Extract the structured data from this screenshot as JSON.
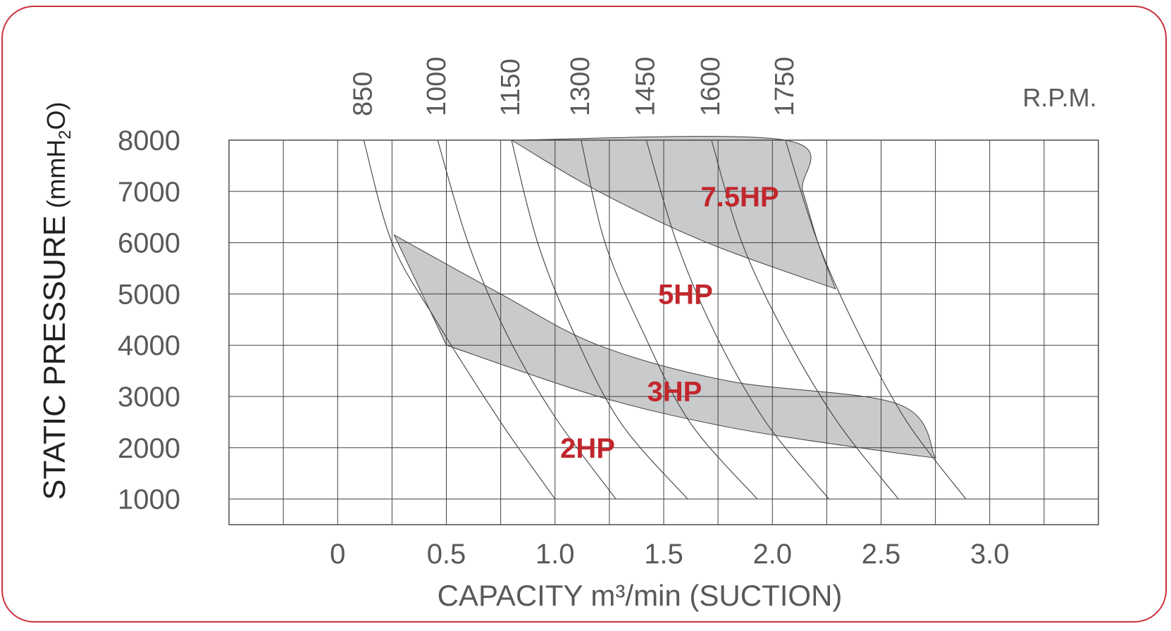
{
  "chart_data": {
    "type": "line",
    "ylabel_main": "STATIC PRESSURE",
    "ylabel_unit_pre": "(mmH",
    "ylabel_unit_sub": "2",
    "ylabel_unit_post": "O)",
    "xlabel": "CAPACITY m³/min (SUCTION)",
    "rpm_label": "R.P.M.",
    "xlim": [
      -0.5,
      3.5
    ],
    "ylim": [
      500,
      8000
    ],
    "x_ticks": [
      "0",
      "0.5",
      "1.0",
      "1.5",
      "2.0",
      "2.5",
      "3.0"
    ],
    "y_ticks": [
      "8000",
      "7000",
      "6000",
      "5000",
      "4000",
      "3000",
      "2000",
      "1000"
    ],
    "grid": true,
    "rpm_curves": [
      {
        "rpm": "850",
        "points": [
          [
            0.12,
            8000
          ],
          [
            0.25,
            6000
          ],
          [
            0.45,
            4500
          ],
          [
            0.75,
            2500
          ],
          [
            1.0,
            1000
          ]
        ]
      },
      {
        "rpm": "1000",
        "points": [
          [
            0.46,
            8000
          ],
          [
            0.6,
            6000
          ],
          [
            0.78,
            4200
          ],
          [
            1.0,
            2600
          ],
          [
            1.28,
            1000
          ]
        ]
      },
      {
        "rpm": "1150",
        "points": [
          [
            0.8,
            8000
          ],
          [
            0.92,
            6000
          ],
          [
            1.08,
            4300
          ],
          [
            1.3,
            2500
          ],
          [
            1.61,
            1000
          ]
        ]
      },
      {
        "rpm": "1300",
        "points": [
          [
            1.12,
            8000
          ],
          [
            1.23,
            6000
          ],
          [
            1.4,
            4300
          ],
          [
            1.62,
            2500
          ],
          [
            1.93,
            1000
          ]
        ]
      },
      {
        "rpm": "1450",
        "points": [
          [
            1.42,
            8000
          ],
          [
            1.56,
            6000
          ],
          [
            1.74,
            4200
          ],
          [
            1.97,
            2500
          ],
          [
            2.26,
            1000
          ]
        ]
      },
      {
        "rpm": "1600",
        "points": [
          [
            1.72,
            8000
          ],
          [
            1.86,
            6000
          ],
          [
            2.06,
            4200
          ],
          [
            2.3,
            2500
          ],
          [
            2.58,
            1000
          ]
        ]
      },
      {
        "rpm": "1750",
        "points": [
          [
            2.06,
            8000
          ],
          [
            2.21,
            6000
          ],
          [
            2.4,
            4200
          ],
          [
            2.62,
            2500
          ],
          [
            2.89,
            1000
          ]
        ]
      }
    ],
    "hp_bands": [
      {
        "name": "7.5HP",
        "upper": [
          [
            0.8,
            8000
          ],
          [
            2.06,
            8000
          ],
          [
            2.14,
            7000
          ],
          [
            2.21,
            6000
          ],
          [
            2.29,
            5100
          ]
        ],
        "lower": [
          [
            0.8,
            8000
          ],
          [
            1.2,
            7000
          ],
          [
            1.7,
            6000
          ],
          [
            2.29,
            5100
          ]
        ]
      },
      {
        "name": "3HP",
        "upper": [
          [
            0.26,
            6150
          ],
          [
            0.75,
            5000
          ],
          [
            1.2,
            4000
          ],
          [
            1.8,
            3300
          ],
          [
            2.58,
            2850
          ],
          [
            2.75,
            1800
          ]
        ],
        "lower": [
          [
            0.5,
            4000
          ],
          [
            1.2,
            3000
          ],
          [
            1.8,
            2400
          ],
          [
            2.4,
            2000
          ],
          [
            2.75,
            1800
          ]
        ]
      }
    ],
    "hp_labels": [
      {
        "text": "7.5HP",
        "x": 1.85,
        "y": 6900
      },
      {
        "text": "5HP",
        "x": 1.6,
        "y": 5000
      },
      {
        "text": "3HP",
        "x": 1.55,
        "y": 3100
      },
      {
        "text": "2HP",
        "x": 1.15,
        "y": 2000
      }
    ],
    "colors": {
      "frame": "#c9303e",
      "hp_label": "#c1272d",
      "band": "#c9cacc",
      "text": "#58595b",
      "grid": "#404040"
    }
  }
}
